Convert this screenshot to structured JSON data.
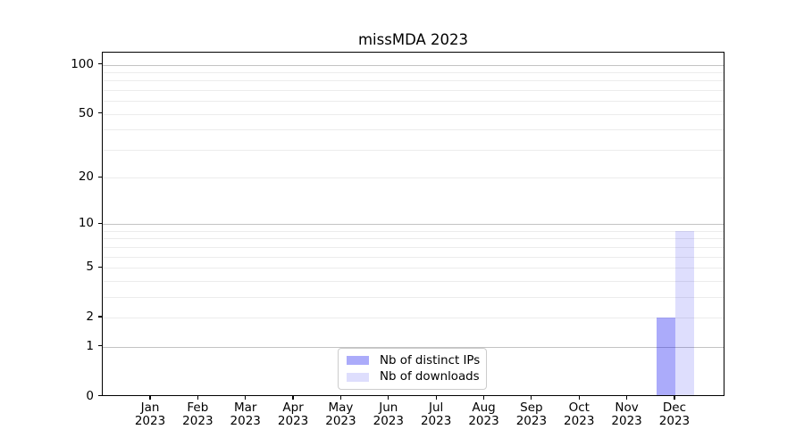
{
  "chart_data": {
    "type": "bar",
    "title": "missMDA 2023",
    "x_categories": [
      "Jan",
      "Feb",
      "Mar",
      "Apr",
      "May",
      "Jun",
      "Jul",
      "Aug",
      "Sep",
      "Oct",
      "Nov",
      "Dec"
    ],
    "x_year_label": "2023",
    "series": [
      {
        "name": "Nb of distinct IPs",
        "color": "rgba(0,0,240,0.33)",
        "solid_color": "#ababf9",
        "values": [
          0,
          0,
          0,
          0,
          0,
          0,
          0,
          0,
          0,
          0,
          0,
          2
        ]
      },
      {
        "name": "Nb of downloads",
        "color": "rgba(0,0,240,0.13)",
        "solid_color": "#dcdcfa",
        "values": [
          0,
          0,
          0,
          0,
          0,
          0,
          0,
          0,
          0,
          0,
          0,
          9
        ]
      }
    ],
    "y_scale": "log1p",
    "ylim": [
      0,
      118
    ],
    "y_ticks": [
      0,
      1,
      2,
      5,
      10,
      20,
      50,
      100
    ],
    "y_major_gridlines": [
      1,
      10,
      100
    ],
    "y_minor_gridlines": [
      2,
      3,
      4,
      5,
      6,
      7,
      8,
      9,
      20,
      30,
      40,
      50,
      60,
      70,
      80,
      90
    ],
    "grid": "horizontal major+minor",
    "legend_position": "lower center",
    "colors": {
      "major_grid": "#c3c3c3",
      "minor_grid": "#ececec",
      "axis": "#000000",
      "background": "#ffffff"
    }
  }
}
